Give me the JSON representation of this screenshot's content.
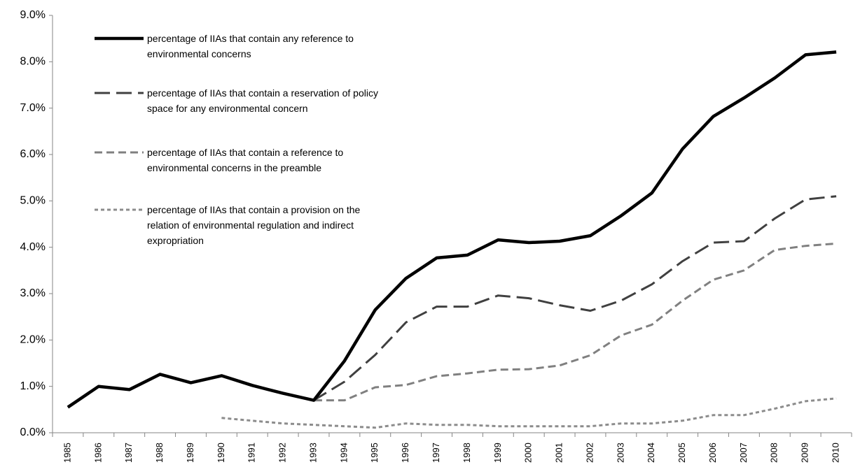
{
  "chart_data": {
    "type": "line",
    "categories": [
      "1985",
      "1986",
      "1987",
      "1988",
      "1989",
      "1990",
      "1991",
      "1992",
      "1993",
      "1994",
      "1995",
      "1996",
      "1997",
      "1998",
      "1999",
      "2000",
      "2001",
      "2002",
      "2003",
      "2004",
      "2005",
      "2006",
      "2007",
      "2008",
      "2009",
      "2010"
    ],
    "series": [
      {
        "name": "percentage of IIAs that contain any reference to environmental concerns",
        "color": "#000000",
        "values": [
          0.55,
          1.0,
          0.93,
          1.26,
          1.08,
          1.23,
          1.02,
          0.85,
          0.7,
          1.55,
          2.65,
          3.33,
          3.77,
          3.83,
          4.16,
          4.1,
          4.13,
          4.25,
          4.68,
          5.17,
          6.12,
          6.82,
          7.22,
          7.65,
          8.15,
          8.21
        ]
      },
      {
        "name": "percentage of IIAs that contain a reservation of policy space for any environmental concern",
        "color": "#404040",
        "values": [
          0.55,
          1.0,
          0.93,
          1.26,
          1.08,
          1.23,
          1.02,
          0.85,
          0.7,
          1.1,
          1.68,
          2.38,
          2.72,
          2.72,
          2.96,
          2.9,
          2.75,
          2.63,
          2.85,
          3.2,
          3.7,
          4.1,
          4.13,
          4.62,
          5.03,
          5.1
        ]
      },
      {
        "name": "percentage of IIAs that contain a reference to environmental concerns in the preamble",
        "color": "#808080",
        "values": [
          0.55,
          1.0,
          0.93,
          1.26,
          1.08,
          1.23,
          1.02,
          0.85,
          0.7,
          0.7,
          0.98,
          1.03,
          1.22,
          1.28,
          1.36,
          1.37,
          1.45,
          1.67,
          2.1,
          2.33,
          2.85,
          3.3,
          3.5,
          3.94,
          4.03,
          4.08
        ]
      },
      {
        "name": "percentage of IIAs that contain a provision on the relation of environmental regulation and indirect expropriation",
        "color": "#8c8c8c",
        "values": [
          null,
          null,
          null,
          null,
          null,
          0.32,
          0.26,
          0.2,
          0.17,
          0.14,
          0.11,
          0.2,
          0.17,
          0.17,
          0.14,
          0.14,
          0.14,
          0.14,
          0.2,
          0.2,
          0.26,
          0.38,
          0.38,
          0.52,
          0.68,
          0.74
        ]
      }
    ],
    "ylim": [
      0,
      9
    ],
    "yticks": [
      {
        "value": 0,
        "label": "0.0%"
      },
      {
        "value": 1,
        "label": "1.0%"
      },
      {
        "value": 2,
        "label": "2.0%"
      },
      {
        "value": 3,
        "label": "3.0%"
      },
      {
        "value": 4,
        "label": "4.0%"
      },
      {
        "value": 5,
        "label": "5.0%"
      },
      {
        "value": 6,
        "label": "6.0%"
      },
      {
        "value": 7,
        "label": "7.0%"
      },
      {
        "value": 8,
        "label": "8.0%"
      },
      {
        "value": 9,
        "label": "9.0%"
      }
    ],
    "legend": "upper left"
  }
}
